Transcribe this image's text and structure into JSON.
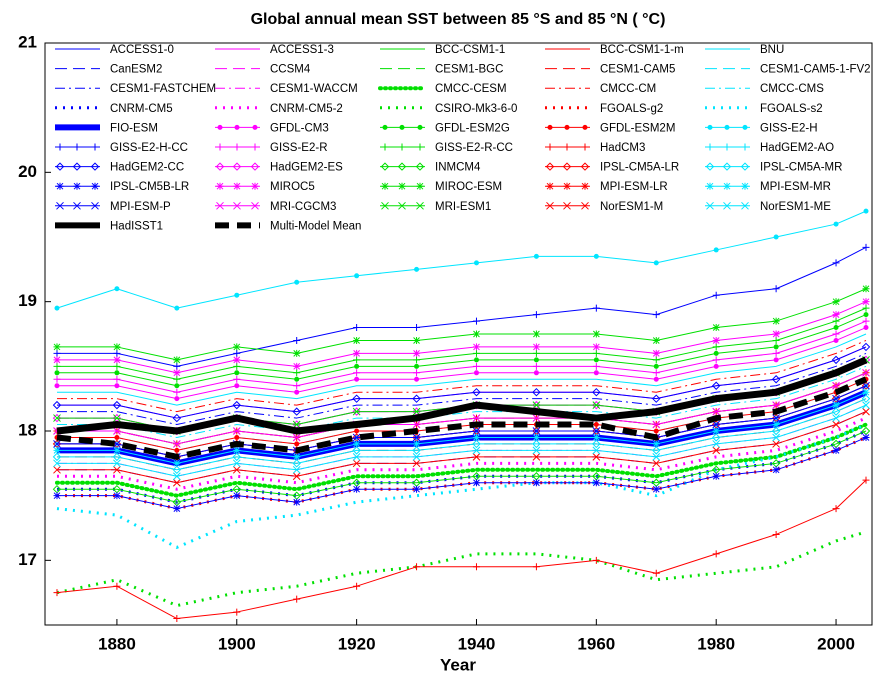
{
  "chart_data": {
    "type": "line",
    "title": "Global annual mean SST between 85 °S and 85 °N ( °C)",
    "x_label": "Year",
    "x": [
      1870,
      1880,
      1890,
      1900,
      1910,
      1920,
      1930,
      1940,
      1950,
      1960,
      1970,
      1980,
      1990,
      2000,
      2005
    ],
    "xlim": [
      1868,
      2006
    ],
    "xticks": [
      1880,
      1900,
      1920,
      1940,
      1960,
      1980,
      2000
    ],
    "ylim": [
      16.5,
      21
    ],
    "yticks": [
      17,
      18,
      19,
      20,
      21
    ],
    "series": [
      {
        "name": "ACCESS1-0",
        "color": "#0000ff",
        "values": [
          17.9,
          17.9,
          17.8,
          17.9,
          17.85,
          17.95,
          17.95,
          18.0,
          18.0,
          18.0,
          17.95,
          18.05,
          18.1,
          18.25,
          18.35
        ]
      },
      {
        "name": "ACCESS1-3",
        "color": "#ff00ff",
        "values": [
          18.2,
          18.2,
          18.1,
          18.2,
          18.15,
          18.25,
          18.25,
          18.3,
          18.3,
          18.3,
          18.25,
          18.35,
          18.4,
          18.55,
          18.65
        ]
      },
      {
        "name": "BCC-CSM1-1",
        "color": "#00e000",
        "values": [
          17.6,
          17.6,
          17.5,
          17.6,
          17.55,
          17.65,
          17.65,
          17.7,
          17.7,
          17.7,
          17.65,
          17.75,
          17.8,
          17.95,
          18.05
        ]
      },
      {
        "name": "BCC-CSM1-1-m",
        "color": "#ff0000",
        "values": [
          17.85,
          17.85,
          17.75,
          17.85,
          17.8,
          17.9,
          17.9,
          17.95,
          17.95,
          17.95,
          17.9,
          18.0,
          18.05,
          18.2,
          18.3
        ]
      },
      {
        "name": "BNU",
        "color": "#00e5ff",
        "values": [
          18.3,
          18.3,
          18.2,
          18.3,
          18.25,
          18.35,
          18.35,
          18.4,
          18.4,
          18.4,
          18.35,
          18.45,
          18.5,
          18.65,
          18.75
        ]
      },
      {
        "name": "CanESM2",
        "color": "#0000ff",
        "values": [
          17.7,
          17.7,
          17.6,
          17.7,
          17.65,
          17.75,
          17.75,
          17.8,
          17.8,
          17.8,
          17.75,
          17.85,
          17.9,
          18.05,
          18.15
        ]
      },
      {
        "name": "CCSM4",
        "color": "#ff00ff",
        "values": [
          18.1,
          18.1,
          18.0,
          18.1,
          18.05,
          18.15,
          18.15,
          18.2,
          18.2,
          18.2,
          18.15,
          18.25,
          18.3,
          18.45,
          18.55
        ]
      },
      {
        "name": "CESM1-BGC",
        "color": "#00e000",
        "values": [
          18.0,
          18.0,
          17.9,
          18.0,
          17.95,
          18.05,
          18.05,
          18.1,
          18.1,
          18.1,
          18.05,
          18.15,
          18.2,
          18.35,
          18.45
        ]
      },
      {
        "name": "CESM1-CAM5",
        "color": "#ff0000",
        "values": [
          17.8,
          17.8,
          17.7,
          17.8,
          17.75,
          17.85,
          17.85,
          17.9,
          17.9,
          17.9,
          17.85,
          17.95,
          18.0,
          18.15,
          18.25
        ]
      },
      {
        "name": "CESM1-CAM5-1-FV2",
        "color": "#00e5ff",
        "values": [
          17.95,
          17.95,
          17.85,
          17.95,
          17.9,
          18.0,
          18.0,
          18.05,
          18.05,
          18.05,
          18.0,
          18.1,
          18.15,
          18.3,
          18.4
        ]
      },
      {
        "name": "CESM1-FASTCHEM",
        "color": "#0000ff",
        "values": [
          18.15,
          18.15,
          18.05,
          18.15,
          18.1,
          18.2,
          18.2,
          18.25,
          18.25,
          18.25,
          18.2,
          18.3,
          18.35,
          18.5,
          18.6
        ]
      },
      {
        "name": "CESM1-WACCM",
        "color": "#ff00ff",
        "values": [
          17.75,
          17.75,
          17.65,
          17.75,
          17.7,
          17.8,
          17.8,
          17.85,
          17.85,
          17.85,
          17.8,
          17.9,
          17.95,
          18.1,
          18.2
        ]
      },
      {
        "name": "CMCC-CESM",
        "color": "#00e000",
        "values": [
          17.6,
          17.6,
          17.5,
          17.6,
          17.55,
          17.65,
          17.65,
          17.7,
          17.7,
          17.7,
          17.65,
          17.75,
          17.8,
          17.95,
          18.05
        ]
      },
      {
        "name": "CMCC-CM",
        "color": "#ff0000",
        "values": [
          18.25,
          18.25,
          18.15,
          18.25,
          18.2,
          18.3,
          18.3,
          18.35,
          18.35,
          18.35,
          18.3,
          18.4,
          18.45,
          18.6,
          18.7
        ]
      },
      {
        "name": "CMCC-CMS",
        "color": "#00e5ff",
        "values": [
          18.05,
          18.05,
          17.95,
          18.05,
          18.0,
          18.1,
          18.1,
          18.15,
          18.15,
          18.15,
          18.1,
          18.2,
          18.25,
          18.4,
          18.5
        ]
      },
      {
        "name": "CNRM-CM5",
        "color": "#0000ff",
        "values": [
          17.55,
          17.55,
          17.45,
          17.55,
          17.5,
          17.6,
          17.6,
          17.65,
          17.65,
          17.65,
          17.6,
          17.7,
          17.75,
          17.9,
          18.0
        ]
      },
      {
        "name": "CNRM-CM5-2",
        "color": "#ff00ff",
        "values": [
          17.65,
          17.65,
          17.55,
          17.65,
          17.6,
          17.7,
          17.7,
          17.75,
          17.75,
          17.75,
          17.7,
          17.8,
          17.85,
          18.0,
          18.1
        ]
      },
      {
        "name": "CSIRO-Mk3-6-0",
        "color": "#00e000",
        "values": [
          16.75,
          16.85,
          16.65,
          16.75,
          16.8,
          16.9,
          16.95,
          17.05,
          17.05,
          17.0,
          16.85,
          16.9,
          16.95,
          17.15,
          17.22
        ]
      },
      {
        "name": "FGOALS-g2",
        "color": "#ff0000",
        "values": [
          17.5,
          17.5,
          17.4,
          17.5,
          17.45,
          17.55,
          17.55,
          17.6,
          17.6,
          17.6,
          17.55,
          17.65,
          17.7,
          17.85,
          17.95
        ]
      },
      {
        "name": "FGOALS-s2",
        "color": "#00e5ff",
        "values": [
          17.4,
          17.35,
          17.1,
          17.3,
          17.35,
          17.45,
          17.5,
          17.55,
          17.6,
          17.6,
          17.5,
          17.7,
          17.8,
          17.95,
          18.05
        ]
      },
      {
        "name": "FIO-ESM",
        "color": "#0000ff",
        "values": [
          17.85,
          17.85,
          17.75,
          17.85,
          17.8,
          17.9,
          17.9,
          17.95,
          17.95,
          17.95,
          17.9,
          18.0,
          18.05,
          18.2,
          18.3
        ]
      },
      {
        "name": "GFDL-CM3",
        "color": "#ff00ff",
        "values": [
          18.35,
          18.35,
          18.25,
          18.35,
          18.3,
          18.4,
          18.4,
          18.45,
          18.45,
          18.45,
          18.4,
          18.5,
          18.55,
          18.7,
          18.8
        ]
      },
      {
        "name": "GFDL-ESM2G",
        "color": "#00e000",
        "values": [
          18.45,
          18.45,
          18.35,
          18.45,
          18.4,
          18.5,
          18.5,
          18.55,
          18.55,
          18.55,
          18.5,
          18.6,
          18.65,
          18.8,
          18.9
        ]
      },
      {
        "name": "GFDL-ESM2M",
        "color": "#ff0000",
        "values": [
          17.95,
          17.95,
          17.85,
          17.95,
          17.9,
          18.0,
          18.0,
          18.05,
          18.05,
          18.05,
          18.0,
          18.1,
          18.15,
          18.3,
          18.4
        ]
      },
      {
        "name": "GISS-E2-H",
        "color": "#00e5ff",
        "values": [
          18.95,
          19.1,
          18.95,
          19.05,
          19.15,
          19.2,
          19.25,
          19.3,
          19.35,
          19.35,
          19.3,
          19.4,
          19.5,
          19.6,
          19.7
        ]
      },
      {
        "name": "GISS-E2-H-CC",
        "color": "#0000ff",
        "values": [
          18.6,
          18.6,
          18.5,
          18.6,
          18.7,
          18.8,
          18.8,
          18.85,
          18.9,
          18.95,
          18.9,
          19.05,
          19.1,
          19.3,
          19.42
        ]
      },
      {
        "name": "GISS-E2-R",
        "color": "#ff00ff",
        "values": [
          18.4,
          18.4,
          18.3,
          18.4,
          18.35,
          18.45,
          18.45,
          18.5,
          18.5,
          18.5,
          18.45,
          18.55,
          18.6,
          18.75,
          18.85
        ]
      },
      {
        "name": "GISS-E2-R-CC",
        "color": "#00e000",
        "values": [
          18.5,
          18.5,
          18.4,
          18.5,
          18.45,
          18.55,
          18.55,
          18.6,
          18.6,
          18.6,
          18.55,
          18.65,
          18.7,
          18.85,
          18.95
        ]
      },
      {
        "name": "HadCM3",
        "color": "#ff0000",
        "values": [
          16.75,
          16.8,
          16.55,
          16.6,
          16.7,
          16.8,
          16.95,
          16.95,
          16.95,
          17.0,
          16.9,
          17.05,
          17.2,
          17.4,
          17.62
        ]
      },
      {
        "name": "HadGEM2-AO",
        "color": "#00e5ff",
        "values": [
          17.9,
          17.9,
          17.8,
          17.9,
          17.85,
          17.95,
          17.95,
          18.0,
          18.0,
          18.0,
          17.95,
          18.05,
          18.1,
          18.25,
          18.35
        ]
      },
      {
        "name": "HadGEM2-CC",
        "color": "#0000ff",
        "values": [
          18.2,
          18.2,
          18.1,
          18.2,
          18.15,
          18.25,
          18.25,
          18.3,
          18.3,
          18.3,
          18.25,
          18.35,
          18.4,
          18.55,
          18.65
        ]
      },
      {
        "name": "HadGEM2-ES",
        "color": "#ff00ff",
        "values": [
          18.1,
          18.1,
          18.0,
          18.1,
          18.05,
          18.15,
          18.15,
          18.2,
          18.2,
          18.2,
          18.15,
          18.25,
          18.3,
          18.45,
          18.55
        ]
      },
      {
        "name": "INMCM4",
        "color": "#00e000",
        "values": [
          17.55,
          17.55,
          17.45,
          17.55,
          17.5,
          17.6,
          17.6,
          17.65,
          17.65,
          17.65,
          17.6,
          17.7,
          17.75,
          17.9,
          18.0
        ]
      },
      {
        "name": "IPSL-CM5A-LR",
        "color": "#ff0000",
        "values": [
          17.9,
          17.9,
          17.8,
          17.9,
          17.85,
          17.95,
          17.95,
          18.0,
          18.0,
          18.0,
          17.95,
          18.05,
          18.1,
          18.25,
          18.35
        ]
      },
      {
        "name": "IPSL-CM5A-MR",
        "color": "#00e5ff",
        "values": [
          17.8,
          17.8,
          17.7,
          17.8,
          17.75,
          17.85,
          17.85,
          17.9,
          17.9,
          17.9,
          17.85,
          17.95,
          18.0,
          18.15,
          18.25
        ]
      },
      {
        "name": "IPSL-CM5B-LR",
        "color": "#0000ff",
        "values": [
          17.5,
          17.5,
          17.4,
          17.5,
          17.45,
          17.55,
          17.55,
          17.6,
          17.6,
          17.6,
          17.55,
          17.65,
          17.7,
          17.85,
          17.95
        ]
      },
      {
        "name": "MIROC5",
        "color": "#ff00ff",
        "values": [
          18.55,
          18.55,
          18.45,
          18.55,
          18.5,
          18.6,
          18.6,
          18.65,
          18.65,
          18.65,
          18.6,
          18.7,
          18.75,
          18.9,
          19.0
        ]
      },
      {
        "name": "MIROC-ESM",
        "color": "#00e000",
        "values": [
          18.65,
          18.65,
          18.55,
          18.65,
          18.6,
          18.7,
          18.7,
          18.75,
          18.75,
          18.75,
          18.7,
          18.8,
          18.85,
          19.0,
          19.1
        ]
      },
      {
        "name": "MPI-ESM-LR",
        "color": "#ff0000",
        "values": [
          18.0,
          18.0,
          17.9,
          18.0,
          17.95,
          18.05,
          18.05,
          18.1,
          18.1,
          18.1,
          18.05,
          18.15,
          18.2,
          18.35,
          18.45
        ]
      },
      {
        "name": "MPI-ESM-MR",
        "color": "#00e5ff",
        "values": [
          17.85,
          17.85,
          17.75,
          17.85,
          17.8,
          17.9,
          17.9,
          17.95,
          17.95,
          17.95,
          17.9,
          18.0,
          18.05,
          18.2,
          18.3
        ]
      },
      {
        "name": "MPI-ESM-P",
        "color": "#0000ff",
        "values": [
          17.9,
          17.9,
          17.8,
          17.9,
          17.85,
          17.95,
          17.95,
          18.0,
          18.0,
          18.0,
          17.95,
          18.05,
          18.1,
          18.25,
          18.35
        ]
      },
      {
        "name": "MRI-CGCM3",
        "color": "#ff00ff",
        "values": [
          18.0,
          18.0,
          17.9,
          18.0,
          17.95,
          18.05,
          18.05,
          18.1,
          18.1,
          18.1,
          18.05,
          18.15,
          18.2,
          18.35,
          18.45
        ]
      },
      {
        "name": "MRI-ESM1",
        "color": "#00e000",
        "values": [
          18.1,
          18.1,
          18.0,
          18.1,
          18.05,
          18.15,
          18.15,
          18.2,
          18.2,
          18.2,
          18.15,
          18.25,
          18.3,
          18.45,
          18.55
        ]
      },
      {
        "name": "NorESM1-M",
        "color": "#ff0000",
        "values": [
          17.7,
          17.7,
          17.6,
          17.7,
          17.65,
          17.75,
          17.75,
          17.8,
          17.8,
          17.8,
          17.75,
          17.85,
          17.9,
          18.05,
          18.15
        ]
      },
      {
        "name": "NorESM1-ME",
        "color": "#00e5ff",
        "values": [
          17.75,
          17.75,
          17.65,
          17.75,
          17.7,
          17.8,
          17.8,
          17.85,
          17.85,
          17.85,
          17.8,
          17.9,
          17.95,
          18.1,
          18.2
        ]
      },
      {
        "name": "HadISST1",
        "color": "#000000",
        "values": [
          18.0,
          18.05,
          18.0,
          18.1,
          18.0,
          18.05,
          18.1,
          18.2,
          18.15,
          18.1,
          18.15,
          18.25,
          18.3,
          18.45,
          18.55
        ]
      },
      {
        "name": "Multi-Model Mean",
        "color": "#000000",
        "values": [
          17.95,
          17.9,
          17.8,
          17.9,
          17.85,
          17.95,
          18.0,
          18.05,
          18.05,
          18.05,
          17.95,
          18.1,
          18.15,
          18.3,
          18.4
        ]
      }
    ]
  }
}
